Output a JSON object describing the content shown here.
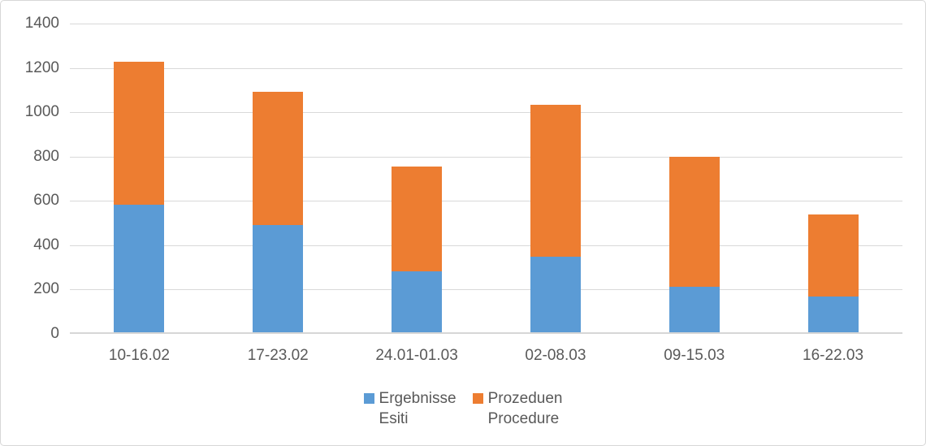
{
  "chart_data": {
    "type": "bar",
    "stacked": true,
    "title": "",
    "categories": [
      "10-16.02",
      "17-23.02",
      "24.01-01.03",
      "02-08.03",
      "09-15.03",
      "16-22.03"
    ],
    "series": [
      {
        "name": "Ergebnisse Esiti",
        "legend_lines": [
          "Ergebnisse",
          "Esiti"
        ],
        "color": "#5B9BD5",
        "values": [
          575,
          485,
          275,
          340,
          205,
          160
        ]
      },
      {
        "name": "Prozeduen Procedure",
        "legend_lines": [
          "Prozeduen",
          "Procedure"
        ],
        "color": "#ED7D31",
        "values": [
          645,
          600,
          473,
          685,
          585,
          370
        ]
      }
    ],
    "stack_totals": [
      1220,
      1085,
      748,
      1025,
      790,
      530
    ],
    "ylim": [
      0,
      1400
    ],
    "y_ticks": [
      0,
      200,
      400,
      600,
      800,
      1000,
      1200,
      1400
    ],
    "grid": true,
    "legend_position": "bottom"
  },
  "colors": {
    "gridline": "#D9D9D9",
    "axis_line": "#D6D6D6",
    "tick_text": "#595959",
    "frame_border": "#D7D7D7",
    "background": "#FFFFFF"
  }
}
